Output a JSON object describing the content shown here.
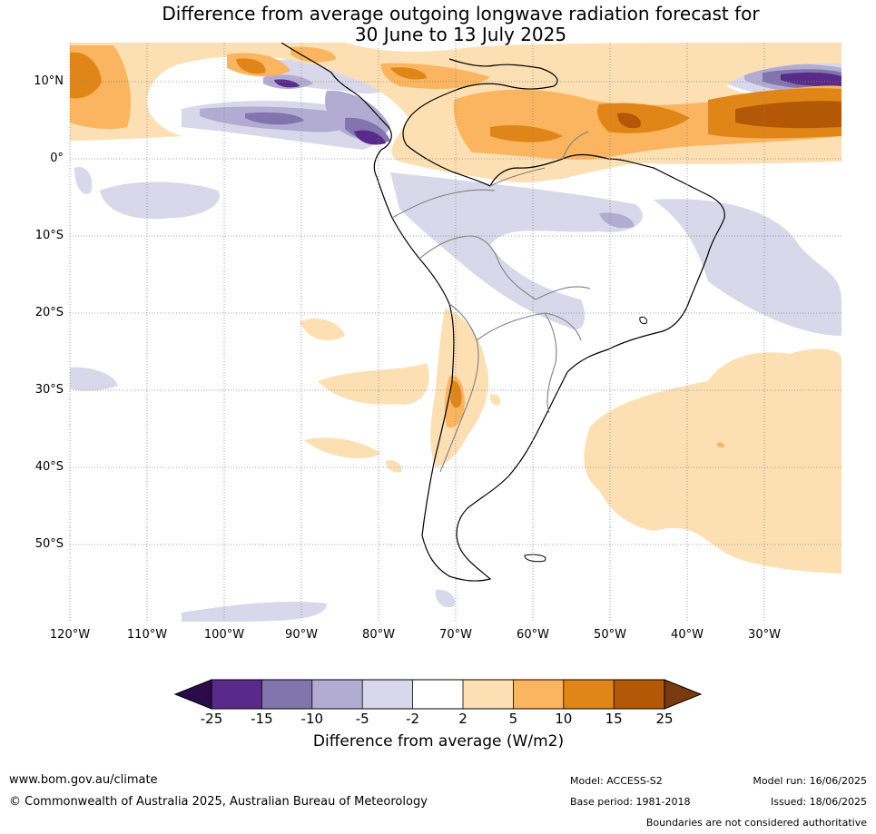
{
  "title": {
    "line1": "Difference from average outgoing longwave radiation forecast for",
    "line2": "30 June to 13 July 2025"
  },
  "map": {
    "lon_range": [
      -120,
      -20
    ],
    "lat_range": [
      -60,
      15
    ],
    "lon_ticks": [
      "120°W",
      "110°W",
      "100°W",
      "90°W",
      "80°W",
      "70°W",
      "60°W",
      "50°W",
      "40°W",
      "30°W"
    ],
    "lat_ticks": [
      "10°N",
      "0°",
      "10°S",
      "20°S",
      "30°S",
      "40°S",
      "50°S"
    ],
    "gridlines": true
  },
  "colorbar": {
    "levels": [
      "-25",
      "-15",
      "-10",
      "-5",
      "-2",
      "2",
      "5",
      "10",
      "15",
      "25"
    ],
    "colors": [
      "#2b0a4a",
      "#5a2a8a",
      "#8275ad",
      "#b2abd2",
      "#d8d8ea",
      "#ffffff",
      "#fddfb4",
      "#fbb45f",
      "#e08618",
      "#b35806",
      "#7a3a10"
    ],
    "label": "Difference from average (W/m2)"
  },
  "footer": {
    "website": "www.bom.gov.au/climate",
    "copyright": "© Commonwealth of Australia 2025, Australian Bureau of Meteorology",
    "model": "Model: ACCESS-S2",
    "base_period": "Base period: 1981-2018",
    "model_run": "Model run: 16/06/2025",
    "issued": "Issued: 18/06/2025",
    "disclaimer": "Boundaries are not considered authoritative"
  }
}
